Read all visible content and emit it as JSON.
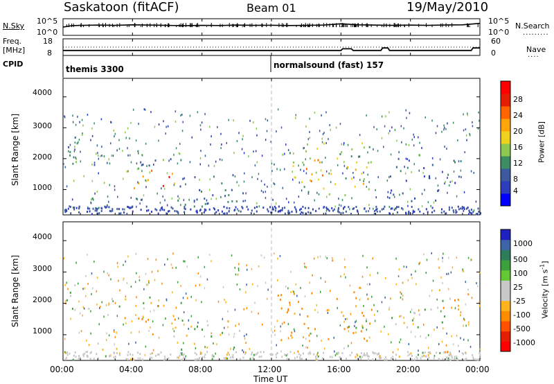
{
  "header": {
    "station": "Saskatoon (fitACF)",
    "beam": "Beam 01",
    "date": "19/May/2010"
  },
  "top_panels": {
    "nsky_label": "N.Sky",
    "nsky_ticks": [
      "10^5",
      "10^0"
    ],
    "nsearch_label": "N.Search",
    "nsearch_ticks": [
      "10^5",
      "10^0"
    ],
    "freq_label": "Freq.",
    "freq_unit": "[MHz]",
    "freq_ticks": [
      "18",
      "8"
    ],
    "nave_label": "Nave",
    "nave_ticks": [
      "60",
      "0"
    ],
    "cpid_label": "CPID",
    "cpid_segments": [
      {
        "name": "themis 3300",
        "start_hour": 0
      },
      {
        "name": "normalsound (fast) 157",
        "start_hour": 12
      }
    ]
  },
  "x_axis": {
    "label": "Time UT",
    "ticks": [
      "00:00",
      "04:00",
      "08:00",
      "12:00",
      "16:00",
      "20:00",
      "00:00"
    ],
    "tick_hours": [
      0,
      4,
      8,
      12,
      16,
      20,
      24
    ]
  },
  "panels": {
    "power": {
      "ylabel": "Slant Range [km]",
      "yticks": [
        "4000",
        "3000",
        "2000",
        "1000"
      ],
      "ytick_values": [
        4000,
        3000,
        2000,
        1000
      ],
      "cbar_label": "Power [dB]",
      "cbar_ticks": [
        "28",
        "24",
        "20",
        "16",
        "12",
        "8",
        "4"
      ],
      "cbar_colors": [
        "#0000ff",
        "#2d3dbd",
        "#3c5aa0",
        "#3c8c64",
        "#8cc850",
        "#f0d21e",
        "#ffa50a",
        "#ff6400",
        "#e61e00",
        "#ff0000"
      ]
    },
    "velocity": {
      "ylabel": "Slant Range [km]",
      "yticks": [
        "4000",
        "3000",
        "2000",
        "1000"
      ],
      "ytick_values": [
        4000,
        3000,
        2000,
        1000
      ],
      "cbar_label": "Velocity [m s",
      "cbar_label_sup": "-1",
      "cbar_label_end": "]",
      "cbar_ticks": [
        "1000",
        "500",
        "100",
        "25",
        "-25",
        "-100",
        "-500",
        "-1000"
      ],
      "cbar_colors": [
        "#2020c0",
        "#3c64a8",
        "#2e7d5a",
        "#3ca03c",
        "#64c832",
        "#c8c8c8",
        "#c8c8c8",
        "#ffb41e",
        "#ff8c00",
        "#ff5000",
        "#e61e00",
        "#ff0000"
      ]
    }
  },
  "chart_data": [
    {
      "type": "line",
      "title": "N.Sky / N.Search",
      "x_range_hours": [
        0,
        24
      ],
      "y_scale": "log",
      "ylim": [
        1,
        100000
      ],
      "series": [
        {
          "name": "N.Sky",
          "x": [
            0,
            0.5,
            1,
            2,
            3,
            4,
            5,
            6,
            7,
            8,
            9,
            10,
            11,
            12,
            13,
            14,
            15,
            16,
            17,
            18,
            19,
            20,
            21,
            22,
            23,
            24
          ],
          "y": [
            300,
            800,
            1000,
            1200,
            1000,
            1500,
            1200,
            1000,
            800,
            1000,
            900,
            1200,
            1000,
            1100,
            900,
            1000,
            1200,
            3000,
            1500,
            1200,
            1000,
            1200,
            1000,
            1300,
            1500,
            4000
          ]
        }
      ]
    },
    {
      "type": "line",
      "title": "Freq. / Nave",
      "x_range_hours": [
        0,
        24
      ],
      "ylim_freq": [
        8,
        18
      ],
      "ylim_nave": [
        0,
        60
      ],
      "series": [
        {
          "name": "Freq.",
          "x": [
            0,
            16,
            16.1,
            16.6,
            16.7,
            18.3,
            18.4,
            18.7,
            18.8,
            23.5,
            23.6,
            24
          ],
          "y": [
            11,
            11,
            12,
            12,
            11,
            11,
            12.5,
            12.5,
            11,
            11,
            12.5,
            12.5
          ]
        },
        {
          "name": "Nave",
          "x": [
            0,
            24
          ],
          "y": [
            30,
            30
          ]
        }
      ]
    },
    {
      "type": "heatmap",
      "title": "Power",
      "x_range_hours": [
        0,
        24
      ],
      "ylim_km": [
        180,
        4600
      ],
      "z_units": "dB",
      "zlim": [
        0,
        30
      ],
      "regions": [
        {
          "t0": 0.0,
          "t1": 0.8,
          "r0": 1700,
          "r1": 2700,
          "power": 8
        },
        {
          "t0": 0.0,
          "t1": 6.8,
          "r0": 1750,
          "r1": 2250,
          "power": 10
        },
        {
          "t0": 1.2,
          "t1": 3.2,
          "r0": 400,
          "r1": 800,
          "power": 12
        },
        {
          "t0": 3.5,
          "t1": 6.5,
          "r0": 1000,
          "r1": 1650,
          "power": 20
        },
        {
          "t0": 5.2,
          "t1": 6.2,
          "r0": 1100,
          "r1": 1500,
          "power": 26
        },
        {
          "t0": 6.3,
          "t1": 10.5,
          "r0": 500,
          "r1": 1500,
          "power": 8
        },
        {
          "t0": 7.5,
          "t1": 11.8,
          "r0": 300,
          "r1": 700,
          "power": 10
        },
        {
          "t0": 12.2,
          "t1": 17.8,
          "r0": 800,
          "r1": 2500,
          "power": 14
        },
        {
          "t0": 13.5,
          "t1": 15.3,
          "r0": 1200,
          "r1": 2000,
          "power": 22
        },
        {
          "t0": 16.0,
          "t1": 17.5,
          "r0": 1100,
          "r1": 1800,
          "power": 18
        },
        {
          "t0": 18.7,
          "t1": 23.0,
          "r0": 1200,
          "r1": 2200,
          "power": 8
        },
        {
          "t0": 18.7,
          "t1": 23.5,
          "r0": 600,
          "r1": 1000,
          "power": 6
        }
      ]
    },
    {
      "type": "heatmap",
      "title": "Velocity",
      "x_range_hours": [
        0,
        24
      ],
      "ylim_km": [
        180,
        4600
      ],
      "z_units": "m s-1",
      "zlim": [
        -1000,
        1000
      ],
      "regions": [
        {
          "t0": 0.0,
          "t1": 0.8,
          "r0": 1700,
          "r1": 2700,
          "velocity": 0
        },
        {
          "t0": 0.0,
          "t1": 6.8,
          "r0": 1750,
          "r1": 2250,
          "velocity": 0
        },
        {
          "t0": 1.2,
          "t1": 3.2,
          "r0": 400,
          "r1": 800,
          "velocity": 0
        },
        {
          "t0": 3.5,
          "t1": 6.5,
          "r0": 1000,
          "r1": 1650,
          "velocity": -120
        },
        {
          "t0": 6.3,
          "t1": 10.5,
          "r0": 500,
          "r1": 1500,
          "velocity": 0
        },
        {
          "t0": 12.2,
          "t1": 17.8,
          "r0": 800,
          "r1": 2500,
          "velocity": -150
        },
        {
          "t0": 16.0,
          "t1": 17.5,
          "r0": 1100,
          "r1": 1800,
          "velocity": 80
        },
        {
          "t0": 18.7,
          "t1": 23.0,
          "r0": 1200,
          "r1": 2200,
          "velocity": 0
        },
        {
          "t0": 21.5,
          "t1": 23.5,
          "r0": 1800,
          "r1": 2500,
          "velocity": -150
        }
      ]
    }
  ]
}
